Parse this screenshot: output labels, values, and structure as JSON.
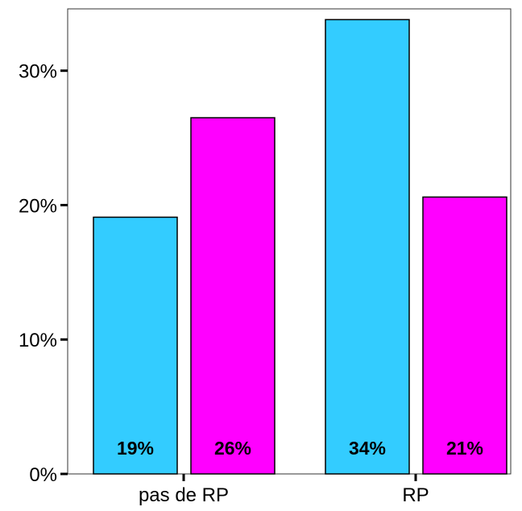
{
  "chart_data": {
    "type": "bar",
    "title": "",
    "xlabel": "",
    "ylabel": "",
    "categories": [
      "pas de RP",
      "RP"
    ],
    "series": [
      {
        "color": "#33ccff",
        "values": [
          19.1,
          33.8
        ]
      },
      {
        "color": "#ff00ff",
        "values": [
          26.5,
          20.6
        ]
      }
    ],
    "data_labels": [
      [
        "19%",
        "34%"
      ],
      [
        "26%",
        "21%"
      ]
    ],
    "ylim": [
      0,
      34.6
    ],
    "yticks": [
      0,
      10,
      20,
      30
    ],
    "ytick_labels": [
      "0%",
      "10%",
      "20%",
      "30%"
    ],
    "grid": false,
    "legend": "none"
  }
}
